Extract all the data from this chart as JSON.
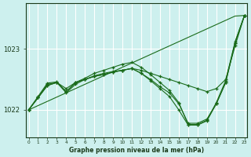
{
  "title": "Graphe pression niveau de la mer (hPa)",
  "background_color": "#cdf0ee",
  "grid_color": "#ffffff",
  "line_color": "#1a6b1a",
  "marker": "+",
  "x_ticks": [
    0,
    1,
    2,
    3,
    4,
    5,
    6,
    7,
    8,
    9,
    10,
    11,
    12,
    13,
    14,
    15,
    16,
    17,
    18,
    19,
    20,
    21,
    22,
    23
  ],
  "y_ticks": [
    1022,
    1023
  ],
  "ylim": [
    1021.55,
    1023.75
  ],
  "xlim": [
    -0.3,
    23.3
  ],
  "series": [
    [
      1022.0,
      1022.2,
      1022.4,
      1022.45,
      1022.35,
      1022.45,
      1022.5,
      1022.55,
      1022.58,
      1022.62,
      1022.65,
      1022.68,
      1022.65,
      1022.6,
      1022.55,
      1022.5,
      1022.45,
      1022.4,
      1022.35,
      1022.3,
      1022.35,
      1022.5,
      1023.05,
      1023.55
    ],
    [
      1022.0,
      1022.2,
      1022.4,
      1022.45,
      1022.3,
      1022.45,
      1022.5,
      1022.55,
      1022.58,
      1022.62,
      1022.65,
      1022.68,
      1022.6,
      1022.5,
      1022.38,
      1022.28,
      1022.1,
      1021.78,
      1021.78,
      1021.85,
      1022.1,
      1022.45,
      1023.1,
      1023.55
    ],
    [
      1022.0,
      1022.2,
      1022.42,
      1022.45,
      1022.28,
      1022.42,
      1022.5,
      1022.56,
      1022.6,
      1022.63,
      1022.65,
      1022.68,
      1022.6,
      1022.48,
      1022.35,
      1022.22,
      1022.0,
      1021.75,
      1021.75,
      1021.82,
      1022.1,
      1022.45,
      1023.1,
      1023.55
    ],
    [
      1022.0,
      1022.22,
      1022.44,
      1022.46,
      1022.3,
      1022.45,
      1022.52,
      1022.6,
      1022.65,
      1022.7,
      1022.75,
      1022.78,
      1022.7,
      1022.58,
      1022.45,
      1022.32,
      1022.12,
      1021.76,
      1021.76,
      1021.83,
      1022.12,
      1022.48,
      1023.12,
      1023.55
    ]
  ],
  "series_straight": [
    1022.0,
    1022.07,
    1022.14,
    1022.21,
    1022.28,
    1022.35,
    1022.42,
    1022.49,
    1022.56,
    1022.63,
    1022.7,
    1022.77,
    1022.84,
    1022.91,
    1022.98,
    1023.05,
    1023.12,
    1023.19,
    1023.26,
    1023.33,
    1023.4,
    1023.47,
    1023.54,
    1023.55
  ]
}
